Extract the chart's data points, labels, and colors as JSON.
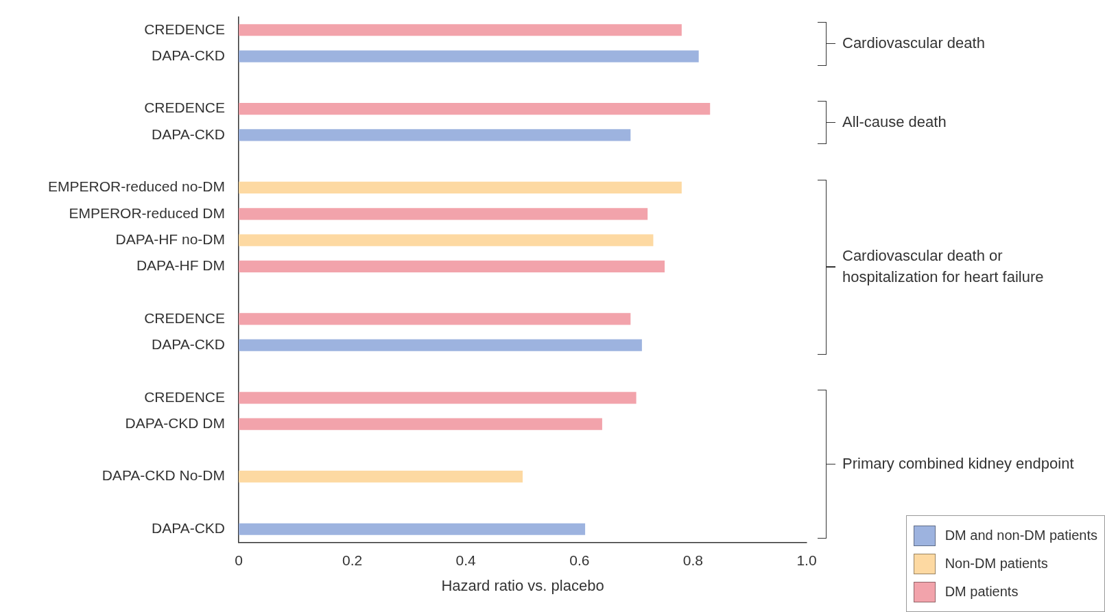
{
  "chart_data": {
    "type": "bar",
    "orientation": "horizontal",
    "xlabel": "Hazard ratio vs. placebo",
    "categories": [
      "CREDENCE",
      "DAPA-CKD",
      null,
      "CREDENCE",
      "DAPA-CKD",
      null,
      "EMPEROR-reduced no-DM",
      "EMPEROR-reduced DM",
      "DAPA-HF no-DM",
      "DAPA-HF DM",
      null,
      "CREDENCE",
      "DAPA-CKD",
      null,
      "CREDENCE",
      "DAPA-CKD DM",
      null,
      "DAPA-CKD No-DM",
      null,
      "DAPA-CKD"
    ],
    "series": [
      {
        "name": "DM and non-DM patients",
        "color": "#9db3df",
        "values": [
          null,
          0.81,
          null,
          null,
          0.69,
          null,
          null,
          null,
          null,
          null,
          null,
          null,
          0.71,
          null,
          null,
          null,
          null,
          null,
          null,
          0.61
        ]
      },
      {
        "name": "Non-DM patients",
        "color": "#fdd9a2",
        "values": [
          null,
          null,
          null,
          null,
          null,
          null,
          0.78,
          null,
          0.73,
          null,
          null,
          null,
          null,
          null,
          null,
          null,
          null,
          0.5,
          null,
          null
        ]
      },
      {
        "name": "DM patients",
        "color": "#f2a3ab",
        "values": [
          0.78,
          null,
          null,
          0.83,
          null,
          null,
          null,
          0.72,
          null,
          0.75,
          null,
          0.69,
          null,
          null,
          0.7,
          0.64,
          null,
          null,
          null,
          null
        ]
      }
    ],
    "xlim": [
      0,
      1
    ],
    "xticks": [
      0,
      0.2,
      0.4,
      0.6,
      0.8,
      {
        "value": 1,
        "label": "1.0"
      }
    ],
    "annotations": [
      "Cardiovascular death",
      "All-cause death",
      "Cardiovascular death or hospitalization for heart failure",
      "Primary combined kidney endpoint"
    ],
    "legend": "bottom right",
    "grid": false
  }
}
